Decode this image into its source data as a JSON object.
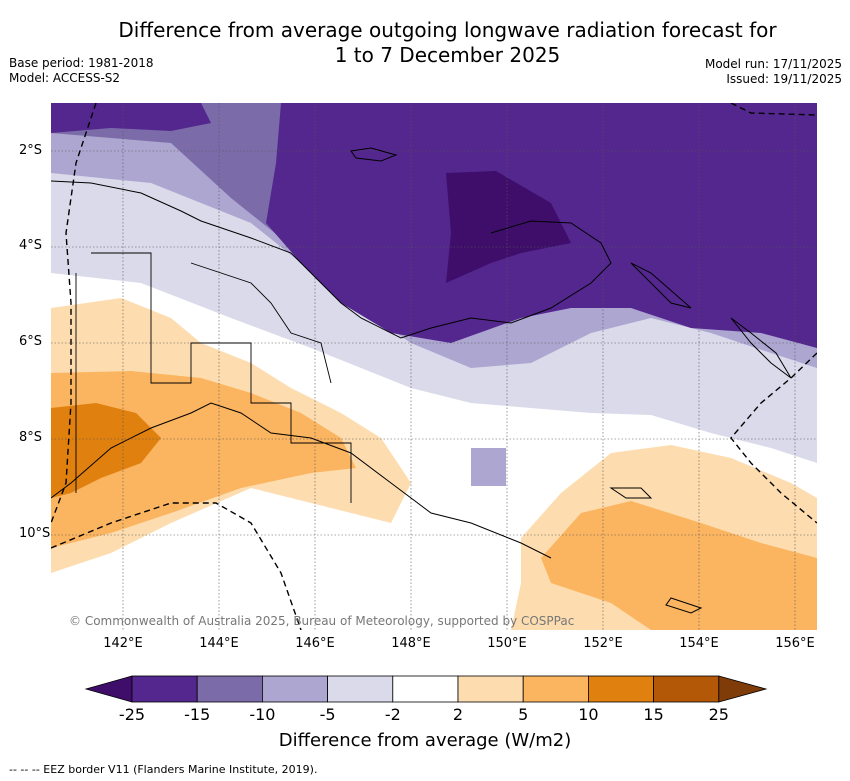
{
  "title": {
    "line1": "Difference from average outgoing longwave radiation forecast for",
    "line2": "1 to 7 December 2025"
  },
  "meta": {
    "base_period": "Base period: 1981-2018",
    "model": "Model: ACCESS-S2",
    "model_run": "Model run: 17/11/2025",
    "issued": "Issued: 19/11/2025"
  },
  "map": {
    "copyright": "© Commonwealth of Australia 2025, Bureau of Meteorology, supported by COSPPac",
    "lat_labels": [
      "2°S",
      "4°S",
      "6°S",
      "8°S",
      "10°S"
    ],
    "lon_labels": [
      "142°E",
      "144°E",
      "146°E",
      "148°E",
      "150°E",
      "152°E",
      "154°E",
      "156°E"
    ]
  },
  "colorbar": {
    "ticks": [
      "-25",
      "-15",
      "-10",
      "-5",
      "-2",
      "2",
      "5",
      "10",
      "15",
      "25"
    ],
    "colors": [
      "#3f0e6b",
      "#54278f",
      "#7b6ca9",
      "#aca6d0",
      "#dadaeb",
      "#ffffff",
      "#fdddb0",
      "#fbb45f",
      "#e0800f",
      "#b35806",
      "#7f3b08"
    ],
    "label": "Difference from average (W/m2)"
  },
  "footnote": "-- -- -- EEZ border V11 (Flanders Marine Institute, 2019)."
}
